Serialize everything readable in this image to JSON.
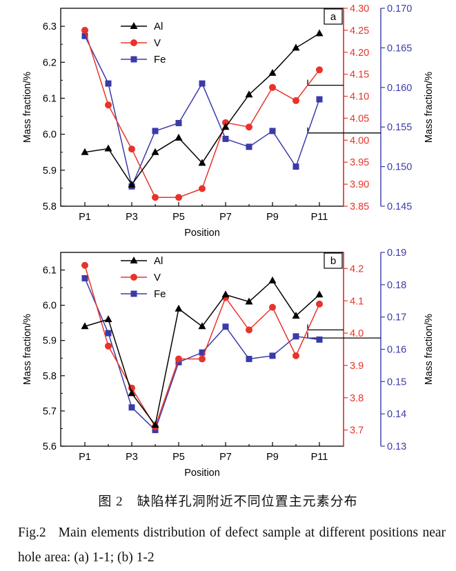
{
  "figure_caption_cn": "图 2　缺陷样孔洞附近不同位置主元素分布",
  "figure_caption_en_tag": "Fig.2",
  "figure_caption_en_text": "Main elements distribution of defect sample at different positions near hole area: (a) 1-1; (b) 1-2",
  "colors": {
    "Al": "#000000",
    "V": "#e8332a",
    "Fe": "#3a3aa8"
  },
  "chart_data": [
    {
      "type": "line",
      "panel_label": "a",
      "xlabel": "Position",
      "x": [
        "P1",
        "P2",
        "P3",
        "P4",
        "P5",
        "P6",
        "P7",
        "P8",
        "P9",
        "P10",
        "P11"
      ],
      "x_tick_labels": [
        "P1",
        "P3",
        "P5",
        "P7",
        "P9",
        "P11"
      ],
      "ylabel": "Mass fraction/%",
      "y_right_label": "Mass fraction/%",
      "grid": false,
      "legend_position": "top-left",
      "axes": {
        "left": {
          "ylim": [
            5.8,
            6.35
          ],
          "ticks": [
            "5.8",
            "5.9",
            "6.0",
            "6.1",
            "6.2",
            "6.3"
          ],
          "color": "#000000"
        },
        "right1": {
          "ylim": [
            3.85,
            4.3
          ],
          "ticks": [
            "3.85",
            "3.90",
            "3.95",
            "4.00",
            "4.05",
            "4.10",
            "4.15",
            "4.20",
            "4.25",
            "4.30"
          ],
          "color": "#e8332a"
        },
        "right2": {
          "ylim": [
            0.145,
            0.17
          ],
          "ticks": [
            "0.145",
            "0.150",
            "0.155",
            "0.160",
            "0.165",
            "0.170"
          ],
          "color": "#3a3aa8"
        }
      },
      "series": [
        {
          "name": "Al",
          "axis": "left",
          "marker": "triangle",
          "values": [
            5.95,
            5.96,
            5.86,
            5.95,
            5.99,
            5.92,
            6.02,
            6.11,
            6.17,
            6.24,
            6.28
          ]
        },
        {
          "name": "V",
          "axis": "right1",
          "marker": "circle",
          "values": [
            4.25,
            4.08,
            3.98,
            3.87,
            3.87,
            3.89,
            4.04,
            4.03,
            4.12,
            4.09,
            4.16
          ]
        },
        {
          "name": "Fe",
          "axis": "right2",
          "marker": "square",
          "values": [
            0.1665,
            0.1605,
            0.1475,
            0.1545,
            0.1555,
            0.1605,
            0.1535,
            0.1525,
            0.1545,
            0.15,
            0.1585
          ]
        }
      ],
      "pointer_lines": [
        {
          "series": "V",
          "x_index": 9.5
        },
        {
          "series": "Fe",
          "x_index": 9.5
        }
      ]
    },
    {
      "type": "line",
      "panel_label": "b",
      "xlabel": "Position",
      "x": [
        "P1",
        "P2",
        "P3",
        "P4",
        "P5",
        "P6",
        "P7",
        "P8",
        "P9",
        "P10",
        "P11"
      ],
      "x_tick_labels": [
        "P1",
        "P3",
        "P5",
        "P7",
        "P9",
        "P11"
      ],
      "ylabel": "Mass fraction/%",
      "y_right_label": "Mass fraction/%",
      "grid": false,
      "legend_position": "top-left",
      "axes": {
        "left": {
          "ylim": [
            5.6,
            6.15
          ],
          "ticks": [
            "5.6",
            "5.7",
            "5.8",
            "5.9",
            "6.0",
            "6.1"
          ],
          "color": "#000000"
        },
        "right1": {
          "ylim": [
            3.65,
            4.25
          ],
          "ticks": [
            "3.7",
            "3.8",
            "3.9",
            "4.0",
            "4.1",
            "4.2"
          ],
          "color": "#e8332a"
        },
        "right2": {
          "ylim": [
            0.13,
            0.19
          ],
          "ticks": [
            "0.13",
            "0.14",
            "0.15",
            "0.16",
            "0.17",
            "0.18",
            "0.19"
          ],
          "color": "#3a3aa8"
        }
      },
      "series": [
        {
          "name": "Al",
          "axis": "left",
          "marker": "triangle",
          "values": [
            5.94,
            5.96,
            5.75,
            5.66,
            5.99,
            5.94,
            6.03,
            6.01,
            6.07,
            5.97,
            6.03
          ]
        },
        {
          "name": "V",
          "axis": "right1",
          "marker": "circle",
          "values": [
            4.21,
            3.96,
            3.83,
            3.71,
            3.92,
            3.92,
            4.11,
            4.01,
            4.08,
            3.93,
            4.09
          ]
        },
        {
          "name": "Fe",
          "axis": "right2",
          "marker": "square",
          "values": [
            0.182,
            0.165,
            0.142,
            0.135,
            0.156,
            0.159,
            0.167,
            0.157,
            0.158,
            0.164,
            0.163
          ]
        }
      ],
      "pointer_lines": [
        {
          "series": "V",
          "x_index": 9.5
        },
        {
          "series": "Fe",
          "x_index": 9.5
        }
      ]
    }
  ]
}
